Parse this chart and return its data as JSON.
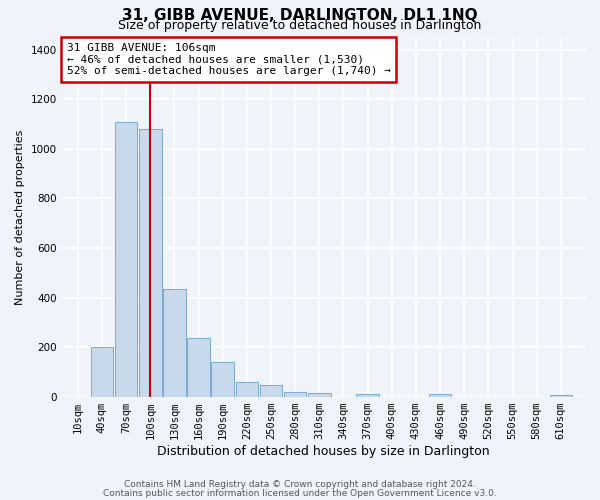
{
  "title": "31, GIBB AVENUE, DARLINGTON, DL1 1NQ",
  "subtitle": "Size of property relative to detached houses in Darlington",
  "xlabel": "Distribution of detached houses by size in Darlington",
  "ylabel": "Number of detached properties",
  "bar_labels": [
    "10sqm",
    "40sqm",
    "70sqm",
    "100sqm",
    "130sqm",
    "160sqm",
    "190sqm",
    "220sqm",
    "250sqm",
    "280sqm",
    "310sqm",
    "340sqm",
    "370sqm",
    "400sqm",
    "430sqm",
    "460sqm",
    "490sqm",
    "520sqm",
    "550sqm",
    "580sqm",
    "610sqm"
  ],
  "bar_values": [
    0,
    200,
    1110,
    1080,
    435,
    235,
    140,
    60,
    45,
    20,
    15,
    0,
    10,
    0,
    0,
    10,
    0,
    0,
    0,
    0,
    5
  ],
  "bar_color": "#c9d9ec",
  "bar_edge_color": "#7aaacf",
  "vline_x": 100,
  "vline_color": "#cc0000",
  "annotation_title": "31 GIBB AVENUE: 106sqm",
  "annotation_line1": "← 46% of detached houses are smaller (1,530)",
  "annotation_line2": "52% of semi-detached houses are larger (1,740) →",
  "annotation_box_color": "#cc0000",
  "ylim": [
    0,
    1450
  ],
  "yticks": [
    0,
    200,
    400,
    600,
    800,
    1000,
    1200,
    1400
  ],
  "footer1": "Contains HM Land Registry data © Crown copyright and database right 2024.",
  "footer2": "Contains public sector information licensed under the Open Government Licence v3.0.",
  "bg_color": "#f0f4fa",
  "plot_bg_color": "#f0f4fa",
  "grid_color": "#ffffff",
  "bin_width": 30,
  "title_fontsize": 11,
  "subtitle_fontsize": 9,
  "xlabel_fontsize": 9,
  "ylabel_fontsize": 8,
  "tick_fontsize": 7.5,
  "annotation_fontsize": 8,
  "footer_fontsize": 6.5
}
